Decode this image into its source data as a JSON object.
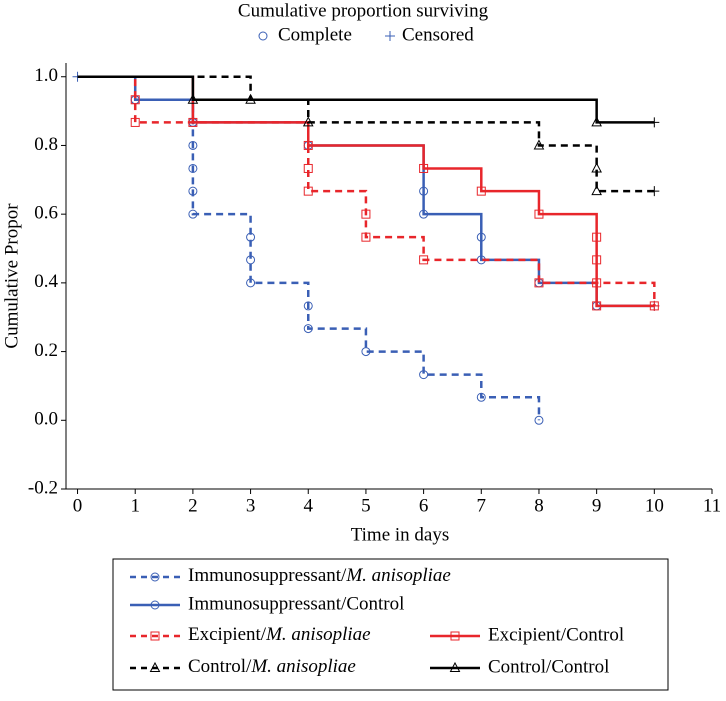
{
  "chart_data": {
    "type": "step",
    "title": "Cumulative proportion surviving",
    "marker_legend": {
      "complete": "Complete",
      "censored": "Censored"
    },
    "xlabel": "Time in days",
    "ylabel": "Cumulative Propor",
    "xlim": [
      -0.2,
      11
    ],
    "ylim": [
      -0.2,
      1.04
    ],
    "xticks": [
      0,
      1,
      2,
      3,
      4,
      5,
      6,
      7,
      8,
      9,
      10,
      11
    ],
    "yticks": [
      -0.2,
      {
        "value": 0,
        "label": "0.0"
      },
      0.2,
      0.4,
      0.6,
      0.8,
      {
        "value": 1,
        "label": "1.0"
      }
    ],
    "series": [
      {
        "name": "Immunosuppressant/M. anisopliae",
        "italic_after_slash": true,
        "color": "#3a5fb5",
        "dashed": true,
        "marker": "circle",
        "x": [
          0,
          1,
          2,
          2,
          2,
          2,
          2,
          3,
          3,
          3,
          4,
          4,
          5,
          6,
          7,
          8
        ],
        "values": [
          1.0,
          0.933,
          0.867,
          0.8,
          0.733,
          0.667,
          0.6,
          0.533,
          0.467,
          0.4,
          0.333,
          0.267,
          0.2,
          0.133,
          0.067,
          0.0
        ],
        "censored": {
          "x": [
            0
          ],
          "values": [
            1.0
          ]
        }
      },
      {
        "name": "Immunosuppressant/Control",
        "italic_after_slash": false,
        "color": "#3a5fb5",
        "dashed": false,
        "marker": "circle",
        "x": [
          0,
          1,
          2,
          4,
          6,
          6,
          7,
          7,
          8,
          9
        ],
        "values": [
          1.0,
          0.933,
          0.867,
          0.8,
          0.667,
          0.6,
          0.533,
          0.467,
          0.4,
          0.333
        ],
        "censored": {
          "x": [
            10
          ],
          "values": [
            0.333
          ]
        }
      },
      {
        "name": "Excipient/M. anisopliae",
        "italic_after_slash": true,
        "color": "#e8262b",
        "dashed": true,
        "marker": "square",
        "x": [
          0,
          1,
          1,
          4,
          4,
          5,
          5,
          6,
          8,
          10
        ],
        "values": [
          1.0,
          0.933,
          0.867,
          0.733,
          0.667,
          0.6,
          0.533,
          0.467,
          0.4,
          0.333
        ]
      },
      {
        "name": "Excipient/Control",
        "italic_after_slash": false,
        "color": "#e8262b",
        "dashed": false,
        "marker": "square",
        "x": [
          0,
          2,
          4,
          6,
          7,
          8,
          9,
          9,
          9,
          9
        ],
        "values": [
          1.0,
          0.867,
          0.8,
          0.733,
          0.667,
          0.6,
          0.533,
          0.467,
          0.4,
          0.333
        ],
        "censored": {
          "x": [
            10
          ],
          "values": [
            0.333
          ]
        }
      },
      {
        "name": "Control/M. anisopliae",
        "italic_after_slash": true,
        "color": "#000000",
        "dashed": true,
        "marker": "triangle",
        "x": [
          0,
          3,
          4,
          8,
          9,
          9
        ],
        "values": [
          1.0,
          0.933,
          0.867,
          0.8,
          0.733,
          0.667
        ],
        "censored": {
          "x": [
            10
          ],
          "values": [
            0.667
          ]
        }
      },
      {
        "name": "Control/Control",
        "italic_after_slash": false,
        "color": "#000000",
        "dashed": false,
        "marker": "triangle",
        "x": [
          0,
          2,
          9
        ],
        "values": [
          1.0,
          0.933,
          0.867
        ],
        "censored": {
          "x": [
            10
          ],
          "values": [
            0.867
          ]
        }
      }
    ]
  }
}
